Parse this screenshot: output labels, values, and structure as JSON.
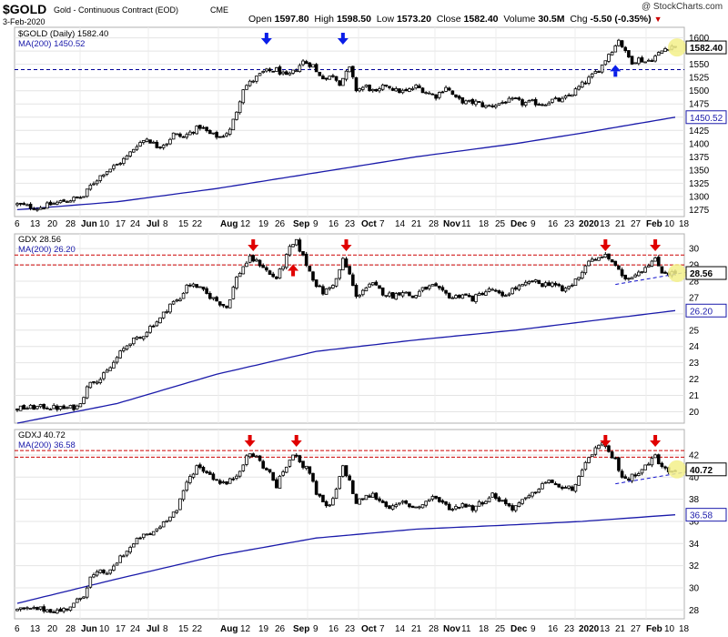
{
  "header": {
    "symbol": "$GOLD",
    "name": "Gold - Continuous Contract (EOD)",
    "exchange": "CME",
    "date": "3-Feb-2020",
    "open_label": "Open",
    "open": "1597.80",
    "high_label": "High",
    "high": "1598.50",
    "low_label": "Low",
    "low": "1573.20",
    "close_label": "Close",
    "close": "1582.40",
    "volume_label": "Volume",
    "volume": "30.5M",
    "chg_label": "Chg",
    "chg": "-5.50 (-0.35%)",
    "watermark": "@ StockCharts.com"
  },
  "x_axis_labels": [
    "6",
    "13",
    "20",
    "28",
    "Jun",
    "10",
    "17",
    "24",
    "Jul",
    "8",
    "15",
    "22",
    "Aug",
    "12",
    "19",
    "26",
    "Sep",
    "9",
    "16",
    "23",
    "Oct",
    "7",
    "14",
    "21",
    "28",
    "Nov",
    "11",
    "18",
    "25",
    "Dec",
    "9",
    "16",
    "23",
    "2020",
    "13",
    "21",
    "27",
    "Feb",
    "10",
    "18"
  ],
  "colors": {
    "ma": "#1a1aaa",
    "resistance": "#cc0000",
    "support_dash": "#1010cc",
    "gold_dashed": "#000099",
    "arrow_red": "#e00000",
    "arrow_blue": "#0a1ee8",
    "highlight": "#f3f08a"
  },
  "chart_data": [
    {
      "type": "candlestick",
      "symbol": "$GOLD",
      "legend": [
        "$GOLD (Daily) 1582.40",
        "MA(200) 1450.52"
      ],
      "last_value": "1582.40",
      "ma_value": "1450.52",
      "y_ticks": [
        1275,
        1300,
        1325,
        1350,
        1375,
        1400,
        1425,
        1450,
        1475,
        1500,
        1525,
        1550,
        1575,
        1600
      ],
      "ylim": [
        1262,
        1620
      ],
      "price_path": [
        [
          0,
          1285
        ],
        [
          6,
          1278
        ],
        [
          13,
          1290
        ],
        [
          16,
          1294
        ],
        [
          20,
          1300
        ],
        [
          22,
          1320
        ],
        [
          26,
          1345
        ],
        [
          30,
          1360
        ],
        [
          33,
          1375
        ],
        [
          36,
          1398
        ],
        [
          39,
          1410
        ],
        [
          42,
          1395
        ],
        [
          45,
          1402
        ],
        [
          47,
          1418
        ],
        [
          50,
          1412
        ],
        [
          53,
          1425
        ],
        [
          55,
          1432
        ],
        [
          58,
          1418
        ],
        [
          61,
          1412
        ],
        [
          64,
          1425
        ],
        [
          66,
          1462
        ],
        [
          68,
          1505
        ],
        [
          71,
          1520
        ],
        [
          74,
          1535
        ],
        [
          78,
          1540
        ],
        [
          81,
          1526
        ],
        [
          83,
          1535
        ],
        [
          86,
          1555
        ],
        [
          89,
          1548
        ],
        [
          90,
          1535
        ],
        [
          93,
          1522
        ],
        [
          95,
          1530
        ],
        [
          97,
          1515
        ],
        [
          100,
          1542
        ],
        [
          102,
          1502
        ],
        [
          105,
          1508
        ],
        [
          108,
          1495
        ],
        [
          111,
          1512
        ],
        [
          114,
          1500
        ],
        [
          117,
          1498
        ],
        [
          120,
          1508
        ],
        [
          123,
          1498
        ],
        [
          126,
          1490
        ],
        [
          129,
          1508
        ],
        [
          132,
          1485
        ],
        [
          135,
          1478
        ],
        [
          138,
          1478
        ],
        [
          141,
          1470
        ],
        [
          144,
          1474
        ],
        [
          147,
          1480
        ],
        [
          150,
          1482
        ],
        [
          152,
          1476
        ],
        [
          155,
          1478
        ],
        [
          158,
          1475
        ],
        [
          161,
          1482
        ],
        [
          164,
          1482
        ],
        [
          167,
          1495
        ],
        [
          170,
          1512
        ],
        [
          173,
          1528
        ],
        [
          176,
          1548
        ],
        [
          178,
          1570
        ],
        [
          180,
          1585
        ],
        [
          181,
          1598
        ],
        [
          183,
          1572
        ],
        [
          185,
          1555
        ],
        [
          187,
          1560
        ],
        [
          189,
          1555
        ],
        [
          191,
          1560
        ],
        [
          193,
          1570
        ],
        [
          195,
          1580
        ],
        [
          197,
          1585
        ],
        [
          198,
          1582
        ]
      ],
      "ma_path": [
        [
          0,
          1275
        ],
        [
          30,
          1290
        ],
        [
          60,
          1315
        ],
        [
          90,
          1345
        ],
        [
          120,
          1375
        ],
        [
          150,
          1400
        ],
        [
          170,
          1420
        ],
        [
          198,
          1450
        ]
      ],
      "support_level": 1540,
      "annotations": {
        "down_arrows": [
          75,
          98
        ],
        "up_arrows": [
          180
        ]
      }
    },
    {
      "type": "candlestick",
      "symbol": "GDX",
      "legend": [
        "GDX 28.56",
        "MA(200) 26.20"
      ],
      "last_value": "28.56",
      "ma_value": "26.20",
      "y_ticks": [
        20,
        21,
        22,
        23,
        24,
        25,
        26,
        27,
        28,
        29,
        30
      ],
      "ylim": [
        19.3,
        30.9
      ],
      "price_path": [
        [
          0,
          20.2
        ],
        [
          8,
          20.3
        ],
        [
          14,
          20.2
        ],
        [
          18,
          20.3
        ],
        [
          20,
          21.0
        ],
        [
          22,
          21.9
        ],
        [
          25,
          22.0
        ],
        [
          28,
          22.7
        ],
        [
          31,
          23.6
        ],
        [
          34,
          24.3
        ],
        [
          37,
          24.5
        ],
        [
          40,
          25.2
        ],
        [
          43,
          25.7
        ],
        [
          46,
          26.6
        ],
        [
          49,
          26.9
        ],
        [
          51,
          27.8
        ],
        [
          54,
          27.7
        ],
        [
          57,
          27.2
        ],
        [
          60,
          26.8
        ],
        [
          63,
          26.4
        ],
        [
          66,
          28.2
        ],
        [
          68,
          28.9
        ],
        [
          70,
          29.4
        ],
        [
          72,
          29.2
        ],
        [
          74,
          28.9
        ],
        [
          76,
          28.4
        ],
        [
          78,
          28.2
        ],
        [
          80,
          29.0
        ],
        [
          82,
          30.0
        ],
        [
          84,
          30.4
        ],
        [
          86,
          29.5
        ],
        [
          88,
          28.6
        ],
        [
          90,
          27.8
        ],
        [
          92,
          27.3
        ],
        [
          94,
          27.6
        ],
        [
          96,
          28.1
        ],
        [
          98,
          29.3
        ],
        [
          100,
          28.4
        ],
        [
          102,
          27.0
        ],
        [
          104,
          27.5
        ],
        [
          107,
          27.8
        ],
        [
          110,
          27.3
        ],
        [
          113,
          27.1
        ],
        [
          116,
          27.4
        ],
        [
          119,
          27.0
        ],
        [
          122,
          27.5
        ],
        [
          125,
          27.7
        ],
        [
          128,
          27.3
        ],
        [
          131,
          27.0
        ],
        [
          134,
          27.2
        ],
        [
          137,
          26.9
        ],
        [
          140,
          27.3
        ],
        [
          143,
          27.5
        ],
        [
          146,
          27.0
        ],
        [
          149,
          27.5
        ],
        [
          152,
          27.7
        ],
        [
          155,
          28.0
        ],
        [
          158,
          27.8
        ],
        [
          161,
          27.9
        ],
        [
          164,
          27.4
        ],
        [
          167,
          27.8
        ],
        [
          170,
          28.6
        ],
        [
          172,
          29.3
        ],
        [
          174,
          29.2
        ],
        [
          176,
          29.6
        ],
        [
          178,
          29.4
        ],
        [
          180,
          29.0
        ],
        [
          182,
          28.2
        ],
        [
          184,
          28.2
        ],
        [
          186,
          28.5
        ],
        [
          188,
          28.7
        ],
        [
          190,
          29.1
        ],
        [
          192,
          29.3
        ],
        [
          194,
          28.6
        ],
        [
          196,
          28.5
        ],
        [
          198,
          28.5
        ]
      ],
      "ma_path": [
        [
          0,
          19.3
        ],
        [
          30,
          20.5
        ],
        [
          60,
          22.3
        ],
        [
          90,
          23.7
        ],
        [
          120,
          24.4
        ],
        [
          150,
          25.0
        ],
        [
          170,
          25.5
        ],
        [
          198,
          26.2
        ]
      ],
      "resistance_levels": [
        29.6,
        29.0
      ],
      "support_trend": [
        [
          180,
          27.8
        ],
        [
          198,
          28.5
        ]
      ],
      "annotations": {
        "down_arrows": [
          71,
          99,
          177,
          192
        ],
        "up_arrows": [
          83
        ]
      }
    },
    {
      "type": "candlestick",
      "symbol": "GDXJ",
      "legend": [
        "GDXJ 40.72",
        "MA(200) 36.58"
      ],
      "last_value": "40.72",
      "ma_value": "36.58",
      "y_ticks": [
        28,
        30,
        32,
        34,
        36,
        38,
        40,
        42
      ],
      "ylim": [
        27.2,
        44.3
      ],
      "price_path": [
        [
          0,
          28.0
        ],
        [
          6,
          28.1
        ],
        [
          13,
          27.9
        ],
        [
          17,
          28.5
        ],
        [
          20,
          29.4
        ],
        [
          22,
          30.9
        ],
        [
          25,
          31.4
        ],
        [
          28,
          31.4
        ],
        [
          31,
          32.8
        ],
        [
          34,
          33.6
        ],
        [
          37,
          34.6
        ],
        [
          40,
          34.8
        ],
        [
          43,
          35.6
        ],
        [
          46,
          36.6
        ],
        [
          48,
          37.0
        ],
        [
          51,
          39.5
        ],
        [
          54,
          41.0
        ],
        [
          57,
          40.5
        ],
        [
          60,
          39.7
        ],
        [
          63,
          39.4
        ],
        [
          66,
          40.2
        ],
        [
          68,
          41.3
        ],
        [
          70,
          42.1
        ],
        [
          72,
          41.8
        ],
        [
          74,
          41.0
        ],
        [
          76,
          40.3
        ],
        [
          78,
          39.2
        ],
        [
          80,
          40.5
        ],
        [
          82,
          41.5
        ],
        [
          84,
          42.1
        ],
        [
          86,
          41.0
        ],
        [
          88,
          40.5
        ],
        [
          90,
          38.6
        ],
        [
          92,
          37.6
        ],
        [
          94,
          37.3
        ],
        [
          96,
          38.8
        ],
        [
          98,
          41.0
        ],
        [
          100,
          39.6
        ],
        [
          102,
          37.6
        ],
        [
          104,
          38.1
        ],
        [
          107,
          38.4
        ],
        [
          110,
          37.7
        ],
        [
          113,
          37.2
        ],
        [
          116,
          37.7
        ],
        [
          119,
          37.3
        ],
        [
          122,
          37.5
        ],
        [
          125,
          38.3
        ],
        [
          128,
          37.6
        ],
        [
          131,
          37.1
        ],
        [
          134,
          37.6
        ],
        [
          137,
          37.2
        ],
        [
          140,
          37.8
        ],
        [
          143,
          38.4
        ],
        [
          146,
          37.8
        ],
        [
          149,
          37.2
        ],
        [
          152,
          37.8
        ],
        [
          155,
          38.4
        ],
        [
          158,
          39.4
        ],
        [
          161,
          39.6
        ],
        [
          164,
          38.9
        ],
        [
          167,
          39.0
        ],
        [
          170,
          40.4
        ],
        [
          172,
          41.8
        ],
        [
          174,
          42.6
        ],
        [
          176,
          42.9
        ],
        [
          178,
          42.2
        ],
        [
          180,
          41.5
        ],
        [
          182,
          40.1
        ],
        [
          184,
          39.8
        ],
        [
          186,
          40.3
        ],
        [
          188,
          40.8
        ],
        [
          190,
          41.2
        ],
        [
          192,
          42.0
        ],
        [
          194,
          40.8
        ],
        [
          196,
          40.6
        ],
        [
          198,
          40.7
        ]
      ],
      "ma_path": [
        [
          0,
          28.6
        ],
        [
          30,
          30.8
        ],
        [
          60,
          32.9
        ],
        [
          90,
          34.5
        ],
        [
          120,
          35.3
        ],
        [
          150,
          35.7
        ],
        [
          170,
          36.0
        ],
        [
          198,
          36.6
        ]
      ],
      "resistance_levels": [
        42.4,
        41.8
      ],
      "support_trend": [
        [
          180,
          39.4
        ],
        [
          198,
          40.4
        ]
      ],
      "annotations": {
        "down_arrows": [
          70,
          84,
          177,
          192
        ],
        "up_arrows": []
      }
    }
  ]
}
